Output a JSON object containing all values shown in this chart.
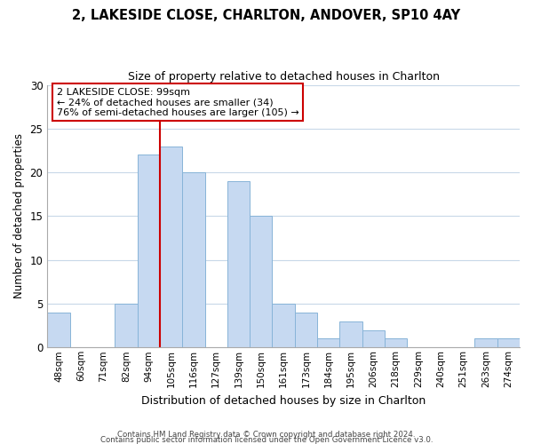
{
  "title": "2, LAKESIDE CLOSE, CHARLTON, ANDOVER, SP10 4AY",
  "subtitle": "Size of property relative to detached houses in Charlton",
  "xlabel": "Distribution of detached houses by size in Charlton",
  "ylabel": "Number of detached properties",
  "bin_labels": [
    "48sqm",
    "60sqm",
    "71sqm",
    "82sqm",
    "94sqm",
    "105sqm",
    "116sqm",
    "127sqm",
    "139sqm",
    "150sqm",
    "161sqm",
    "173sqm",
    "184sqm",
    "195sqm",
    "206sqm",
    "218sqm",
    "229sqm",
    "240sqm",
    "251sqm",
    "263sqm",
    "274sqm"
  ],
  "bin_values": [
    4,
    0,
    0,
    5,
    22,
    23,
    20,
    0,
    19,
    15,
    5,
    4,
    1,
    3,
    2,
    1,
    0,
    0,
    0,
    1,
    1
  ],
  "bar_color": "#c6d9f1",
  "bar_edge_color": "#88b4d8",
  "vline_x": 5,
  "vline_color": "#cc0000",
  "annotation_text": "2 LAKESIDE CLOSE: 99sqm\n← 24% of detached houses are smaller (34)\n76% of semi-detached houses are larger (105) →",
  "annotation_box_color": "#ffffff",
  "annotation_box_edge_color": "#cc0000",
  "ylim": [
    0,
    30
  ],
  "yticks": [
    0,
    5,
    10,
    15,
    20,
    25,
    30
  ],
  "footer1": "Contains HM Land Registry data © Crown copyright and database right 2024.",
  "footer2": "Contains public sector information licensed under the Open Government Licence v3.0.",
  "background_color": "#ffffff",
  "grid_color": "#c8d8e8"
}
